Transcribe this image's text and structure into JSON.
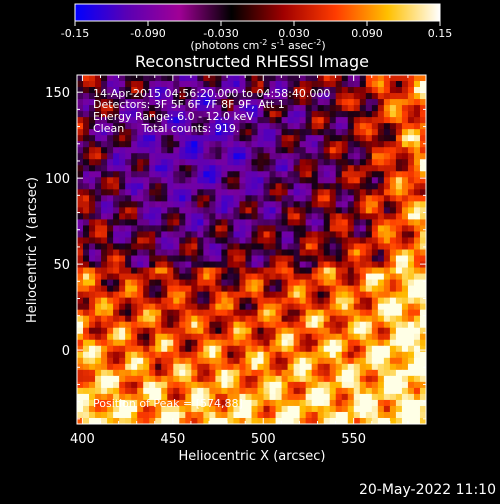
{
  "colorbar": {
    "ticks": [
      "-0.15",
      "-0.090",
      "-0.030",
      "0.030",
      "0.090",
      "0.15"
    ],
    "units_prefix": "(photons cm",
    "units_exp1": "-2",
    "units_mid": " s",
    "units_exp2": "-1",
    "units_mid2": " asec",
    "units_exp3": "-2",
    "units_suffix": ")",
    "colors": [
      "#0000ff",
      "#5a00b4",
      "#a00096",
      "#000000",
      "#a00000",
      "#ff3c00",
      "#ffc000",
      "#ffffff"
    ]
  },
  "chart_data": {
    "type": "heatmap",
    "title": "Reconstructed RHESSI Image",
    "xlabel": "Heliocentric X (arcsec)",
    "ylabel": "Heliocentric Y (arcsec)",
    "xlim": [
      397,
      590
    ],
    "ylim": [
      -43,
      160
    ],
    "x_ticks": [
      400,
      450,
      500,
      550
    ],
    "y_ticks": [
      0,
      50,
      100,
      150
    ],
    "x_tick_labels": [
      "400",
      "450",
      "500",
      "550"
    ],
    "y_tick_labels": [
      "0",
      "50",
      "100",
      "150"
    ],
    "value_range": [
      -0.15,
      0.15
    ],
    "annotations": [
      "14-Apr-2015 04:56:20.000 to 04:58:40.000",
      "Detectors: 3F 5F 6F 7F 8F 9F, Att 1",
      "Energy Range: 6.0 - 12.0 keV",
      "Clean     Total counts: 919."
    ],
    "peak_label": "Position of Peak = [574,88]"
  },
  "timestamp": "20-May-2022 11:10"
}
